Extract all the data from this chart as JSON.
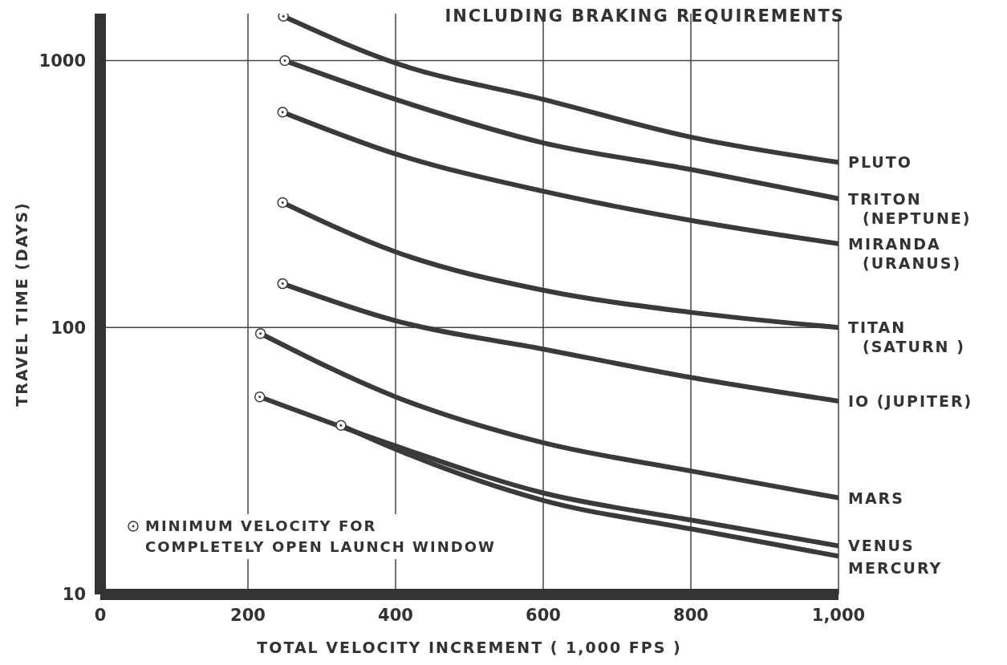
{
  "chart_data": {
    "type": "line",
    "title": "INCLUDING BRAKING REQUIREMENTS",
    "xlabel": "TOTAL VELOCITY INCREMENT ( 1,000 FPS )",
    "ylabel": "TRAVEL TIME (DAYS)",
    "log": "y",
    "grid": true,
    "legend": "bottom left",
    "line_style": "solid",
    "xlim": [
      0,
      1000
    ],
    "xticks": [
      0,
      200,
      400,
      600,
      800,
      {
        "value": 1000,
        "label": "1,000"
      }
    ],
    "ylim": [
      10,
      1500
    ],
    "yticks": [
      10,
      100,
      1000
    ],
    "series": [
      {
        "name": "PLUTO",
        "color": "#3a3a3a",
        "x": [
          248,
          400,
          600,
          800,
          1000
        ],
        "values": [
          1466,
          979,
          716,
          517,
          416
        ]
      },
      {
        "name": "TRITON (NEPTUNE)",
        "color": "#3a3a3a",
        "x": [
          250,
          400,
          600,
          800,
          1000
        ],
        "values": [
          1000,
          716,
          492,
          391,
          304
        ]
      },
      {
        "name": "MIRANDA (URANUS)",
        "color": "#3a3a3a",
        "x": [
          247,
          400,
          600,
          800,
          1000
        ],
        "values": [
          641,
          447,
          324,
          252,
          206
        ]
      },
      {
        "name": "TITAN (SATURN )",
        "color": "#3a3a3a",
        "x": [
          247,
          400,
          600,
          800,
          1000
        ],
        "values": [
          294,
          192,
          138,
          114,
          100
        ]
      },
      {
        "name": "IO (JUPITER)",
        "color": "#3a3a3a",
        "x": [
          247,
          400,
          600,
          800,
          1000
        ],
        "values": [
          146,
          106,
          83,
          65,
          53
        ]
      },
      {
        "name": "MARS",
        "color": "#3a3a3a",
        "x": [
          217,
          400,
          600,
          800,
          1000
        ],
        "values": [
          95,
          55,
          37,
          29,
          23
        ]
      },
      {
        "name": "VENUS",
        "color": "#3a3a3a",
        "x": [
          216,
          400,
          600,
          800,
          1000
        ],
        "values": [
          55,
          36,
          24,
          19,
          15.2
        ]
      },
      {
        "name": "MERCURY",
        "color": "#3a3a3a",
        "x": [
          326,
          400,
          600,
          800,
          1000
        ],
        "values": [
          43,
          35,
          22.5,
          17.6,
          13.9
        ]
      },
      {
        "name": "MINIMUM VELOCITY FOR COMPLETELY OPEN LAUNCH WINDOW",
        "type": "scatter",
        "marker": "circle",
        "color": "#3a3a3a",
        "x": [
          248,
          250,
          247,
          247,
          247,
          217,
          216,
          326
        ],
        "values": [
          1466,
          1000,
          641,
          294,
          146,
          95,
          55,
          43
        ]
      }
    ]
  }
}
